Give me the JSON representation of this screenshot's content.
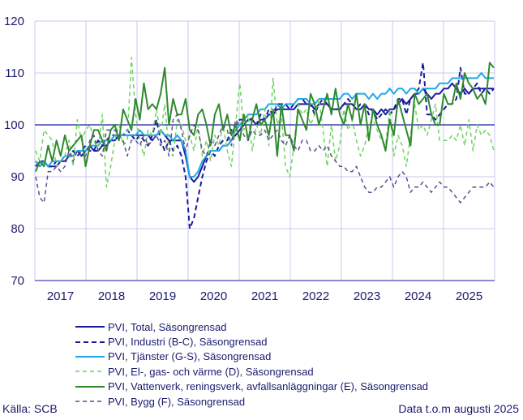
{
  "chart_data": {
    "type": "line",
    "title": "",
    "xlabel": "",
    "ylabel": "",
    "ylim": [
      70,
      120
    ],
    "yticks": [
      70,
      80,
      90,
      100,
      110,
      120
    ],
    "year_labels": [
      "2017",
      "2018",
      "2019",
      "2020",
      "2021",
      "2022",
      "2023",
      "2024",
      "2025"
    ],
    "x_start": "2016-09",
    "x_end": "2025-08",
    "reference_line": 100,
    "series": [
      {
        "name": "PVI, Total, Säsongrensad",
        "color": "#1a1aa0",
        "dash": "",
        "width": 2,
        "values": [
          93,
          92,
          93,
          92,
          92,
          92,
          93,
          93,
          94,
          94,
          95,
          94,
          95,
          96,
          95,
          95,
          96,
          96,
          97,
          97,
          98,
          98,
          98,
          98,
          98,
          98,
          98,
          98,
          97,
          98,
          99,
          98,
          97,
          97,
          97,
          97,
          94,
          90,
          89,
          90,
          92,
          94,
          95,
          95,
          95,
          96,
          96,
          97,
          98,
          99,
          100,
          101,
          101,
          100,
          101,
          101,
          102,
          102,
          103,
          103,
          103,
          103,
          103,
          104,
          104,
          104,
          104,
          103,
          104,
          104,
          104,
          103,
          103,
          103,
          104,
          104,
          104,
          103,
          103,
          104,
          103,
          103,
          102,
          103,
          102,
          103,
          103,
          104,
          105,
          104,
          105,
          106,
          106,
          107,
          106,
          105,
          106,
          106,
          107,
          107,
          108,
          107,
          106,
          107,
          106,
          107,
          107,
          107,
          107,
          107,
          107
        ]
      },
      {
        "name": "PVI, Industri (B-C), Säsongrensad",
        "color": "#1a1aa0",
        "dash": "6,4",
        "width": 2,
        "values": [
          92,
          93,
          93,
          92,
          92,
          93,
          93,
          94,
          94,
          95,
          94,
          95,
          96,
          95,
          95,
          97,
          96,
          97,
          98,
          98,
          98,
          98,
          99,
          98,
          97,
          98,
          97,
          96,
          98,
          101,
          97,
          95,
          97,
          95,
          96,
          94,
          90,
          80,
          82,
          86,
          90,
          93,
          95,
          94,
          96,
          97,
          97,
          99,
          100,
          101,
          101,
          102,
          101,
          100,
          102,
          101,
          103,
          102,
          104,
          104,
          104,
          103,
          104,
          105,
          105,
          104,
          104,
          102,
          104,
          105,
          104,
          103,
          103,
          103,
          104,
          105,
          104,
          103,
          104,
          104,
          102,
          103,
          101,
          102,
          103,
          102,
          103,
          105,
          105,
          102,
          105,
          106,
          107,
          112,
          102,
          102,
          101,
          102,
          103,
          104,
          104,
          105,
          111,
          106,
          106,
          107,
          108,
          106,
          107,
          106,
          107
        ]
      },
      {
        "name": "PVI, Tjänster (G-S), Säsongrensad",
        "color": "#1fa9e6",
        "dash": "",
        "width": 2,
        "values": [
          93,
          92,
          93,
          92,
          93,
          93,
          93,
          94,
          94,
          94,
          95,
          95,
          95,
          96,
          96,
          96,
          97,
          97,
          97,
          98,
          98,
          98,
          98,
          98,
          98,
          99,
          98,
          98,
          98,
          98,
          99,
          98,
          98,
          97,
          98,
          97,
          95,
          90,
          90,
          91,
          93,
          94,
          95,
          95,
          95,
          96,
          96,
          97,
          99,
          100,
          101,
          102,
          102,
          102,
          103,
          103,
          104,
          104,
          104,
          103,
          104,
          104,
          104,
          105,
          105,
          105,
          104,
          104,
          105,
          105,
          105,
          105,
          105,
          105,
          106,
          106,
          105,
          106,
          106,
          106,
          105,
          106,
          105,
          106,
          106,
          107,
          106,
          107,
          107,
          106,
          107,
          107,
          106,
          107,
          107,
          107,
          107,
          108,
          108,
          108,
          109,
          109,
          109,
          109,
          109,
          109,
          109,
          110,
          109,
          109,
          109
        ]
      },
      {
        "name": "PVI, El-, gas- och värme (D), Säsongrensad",
        "color": "#6ed35e",
        "dash": "5,4",
        "width": 1.5,
        "values": [
          95,
          93,
          99,
          98,
          97,
          92,
          93,
          94,
          97,
          92,
          101,
          97,
          99,
          100,
          97,
          95,
          102,
          88,
          92,
          97,
          100,
          96,
          97,
          113,
          102,
          97,
          94,
          99,
          98,
          103,
          98,
          104,
          95,
          94,
          101,
          100,
          97,
          98,
          95,
          100,
          94,
          97,
          93,
          98,
          96,
          100,
          95,
          92,
          100,
          108,
          99,
          102,
          95,
          100,
          98,
          103,
          96,
          109,
          100,
          102,
          92,
          90,
          96,
          104,
          102,
          103,
          100,
          102,
          105,
          99,
          92,
          100,
          93,
          96,
          103,
          99,
          101,
          97,
          94,
          96,
          100,
          101,
          99,
          97,
          96,
          103,
          94,
          98,
          96,
          92,
          98,
          104,
          99,
          100,
          98,
          101,
          104,
          97,
          97,
          97,
          98,
          97,
          100,
          96,
          101,
          95,
          100,
          98,
          99,
          98,
          95
        ]
      },
      {
        "name": "PVI, Vattenverk, reningsverk, avfallsanläggningar (E), Säsongrensad",
        "color": "#2f8a2f",
        "dash": "",
        "width": 2,
        "values": [
          91,
          93,
          92,
          96,
          93,
          97,
          94,
          98,
          95,
          96,
          97,
          98,
          92,
          96,
          99,
          99,
          97,
          95,
          99,
          100,
          97,
          103,
          101,
          99,
          105,
          101,
          108,
          103,
          104,
          103,
          106,
          111,
          100,
          105,
          102,
          102,
          105,
          99,
          98,
          102,
          103,
          100,
          96,
          102,
          104,
          99,
          102,
          98,
          100,
          97,
          102,
          97,
          101,
          104,
          100,
          101,
          98,
          103,
          94,
          104,
          98,
          98,
          95,
          103,
          101,
          99,
          106,
          104,
          100,
          103,
          106,
          102,
          107,
          102,
          100,
          104,
          101,
          106,
          100,
          104,
          97,
          103,
          100,
          98,
          95,
          101,
          98,
          105,
          102,
          99,
          96,
          106,
          104,
          105,
          106,
          102,
          100,
          100,
          106,
          104,
          104,
          108,
          105,
          110,
          108,
          107,
          105,
          106,
          104,
          112,
          111
        ]
      },
      {
        "name": "PVI, Bygg (F), Säsongrensad",
        "color": "#5a4f8c",
        "dash": "5,4",
        "width": 1.5,
        "values": [
          90,
          86,
          85,
          91,
          91,
          92,
          91,
          92,
          95,
          93,
          95,
          94,
          94,
          97,
          98,
          95,
          94,
          99,
          99,
          99,
          98,
          97,
          94,
          97,
          97,
          96,
          98,
          96,
          97,
          98,
          96,
          97,
          94,
          101,
          102,
          99,
          95,
          98,
          100,
          99,
          95,
          94,
          97,
          96,
          98,
          100,
          99,
          96,
          101,
          100,
          98,
          97,
          99,
          98,
          98,
          99,
          97,
          98,
          99,
          97,
          96,
          98,
          96,
          95,
          97,
          97,
          95,
          95,
          96,
          95,
          96,
          94,
          93,
          92,
          92,
          91,
          91,
          92,
          90,
          88,
          87,
          87,
          88,
          88,
          89,
          90,
          88,
          90,
          91,
          90,
          87,
          88,
          88,
          89,
          88,
          87,
          88,
          89,
          88,
          88,
          87,
          86,
          85,
          86,
          87,
          88,
          88,
          88,
          88,
          89,
          88
        ]
      }
    ]
  },
  "footer": {
    "source": "Källa: SCB",
    "data_note": "Data t.o.m augusti 2025"
  }
}
